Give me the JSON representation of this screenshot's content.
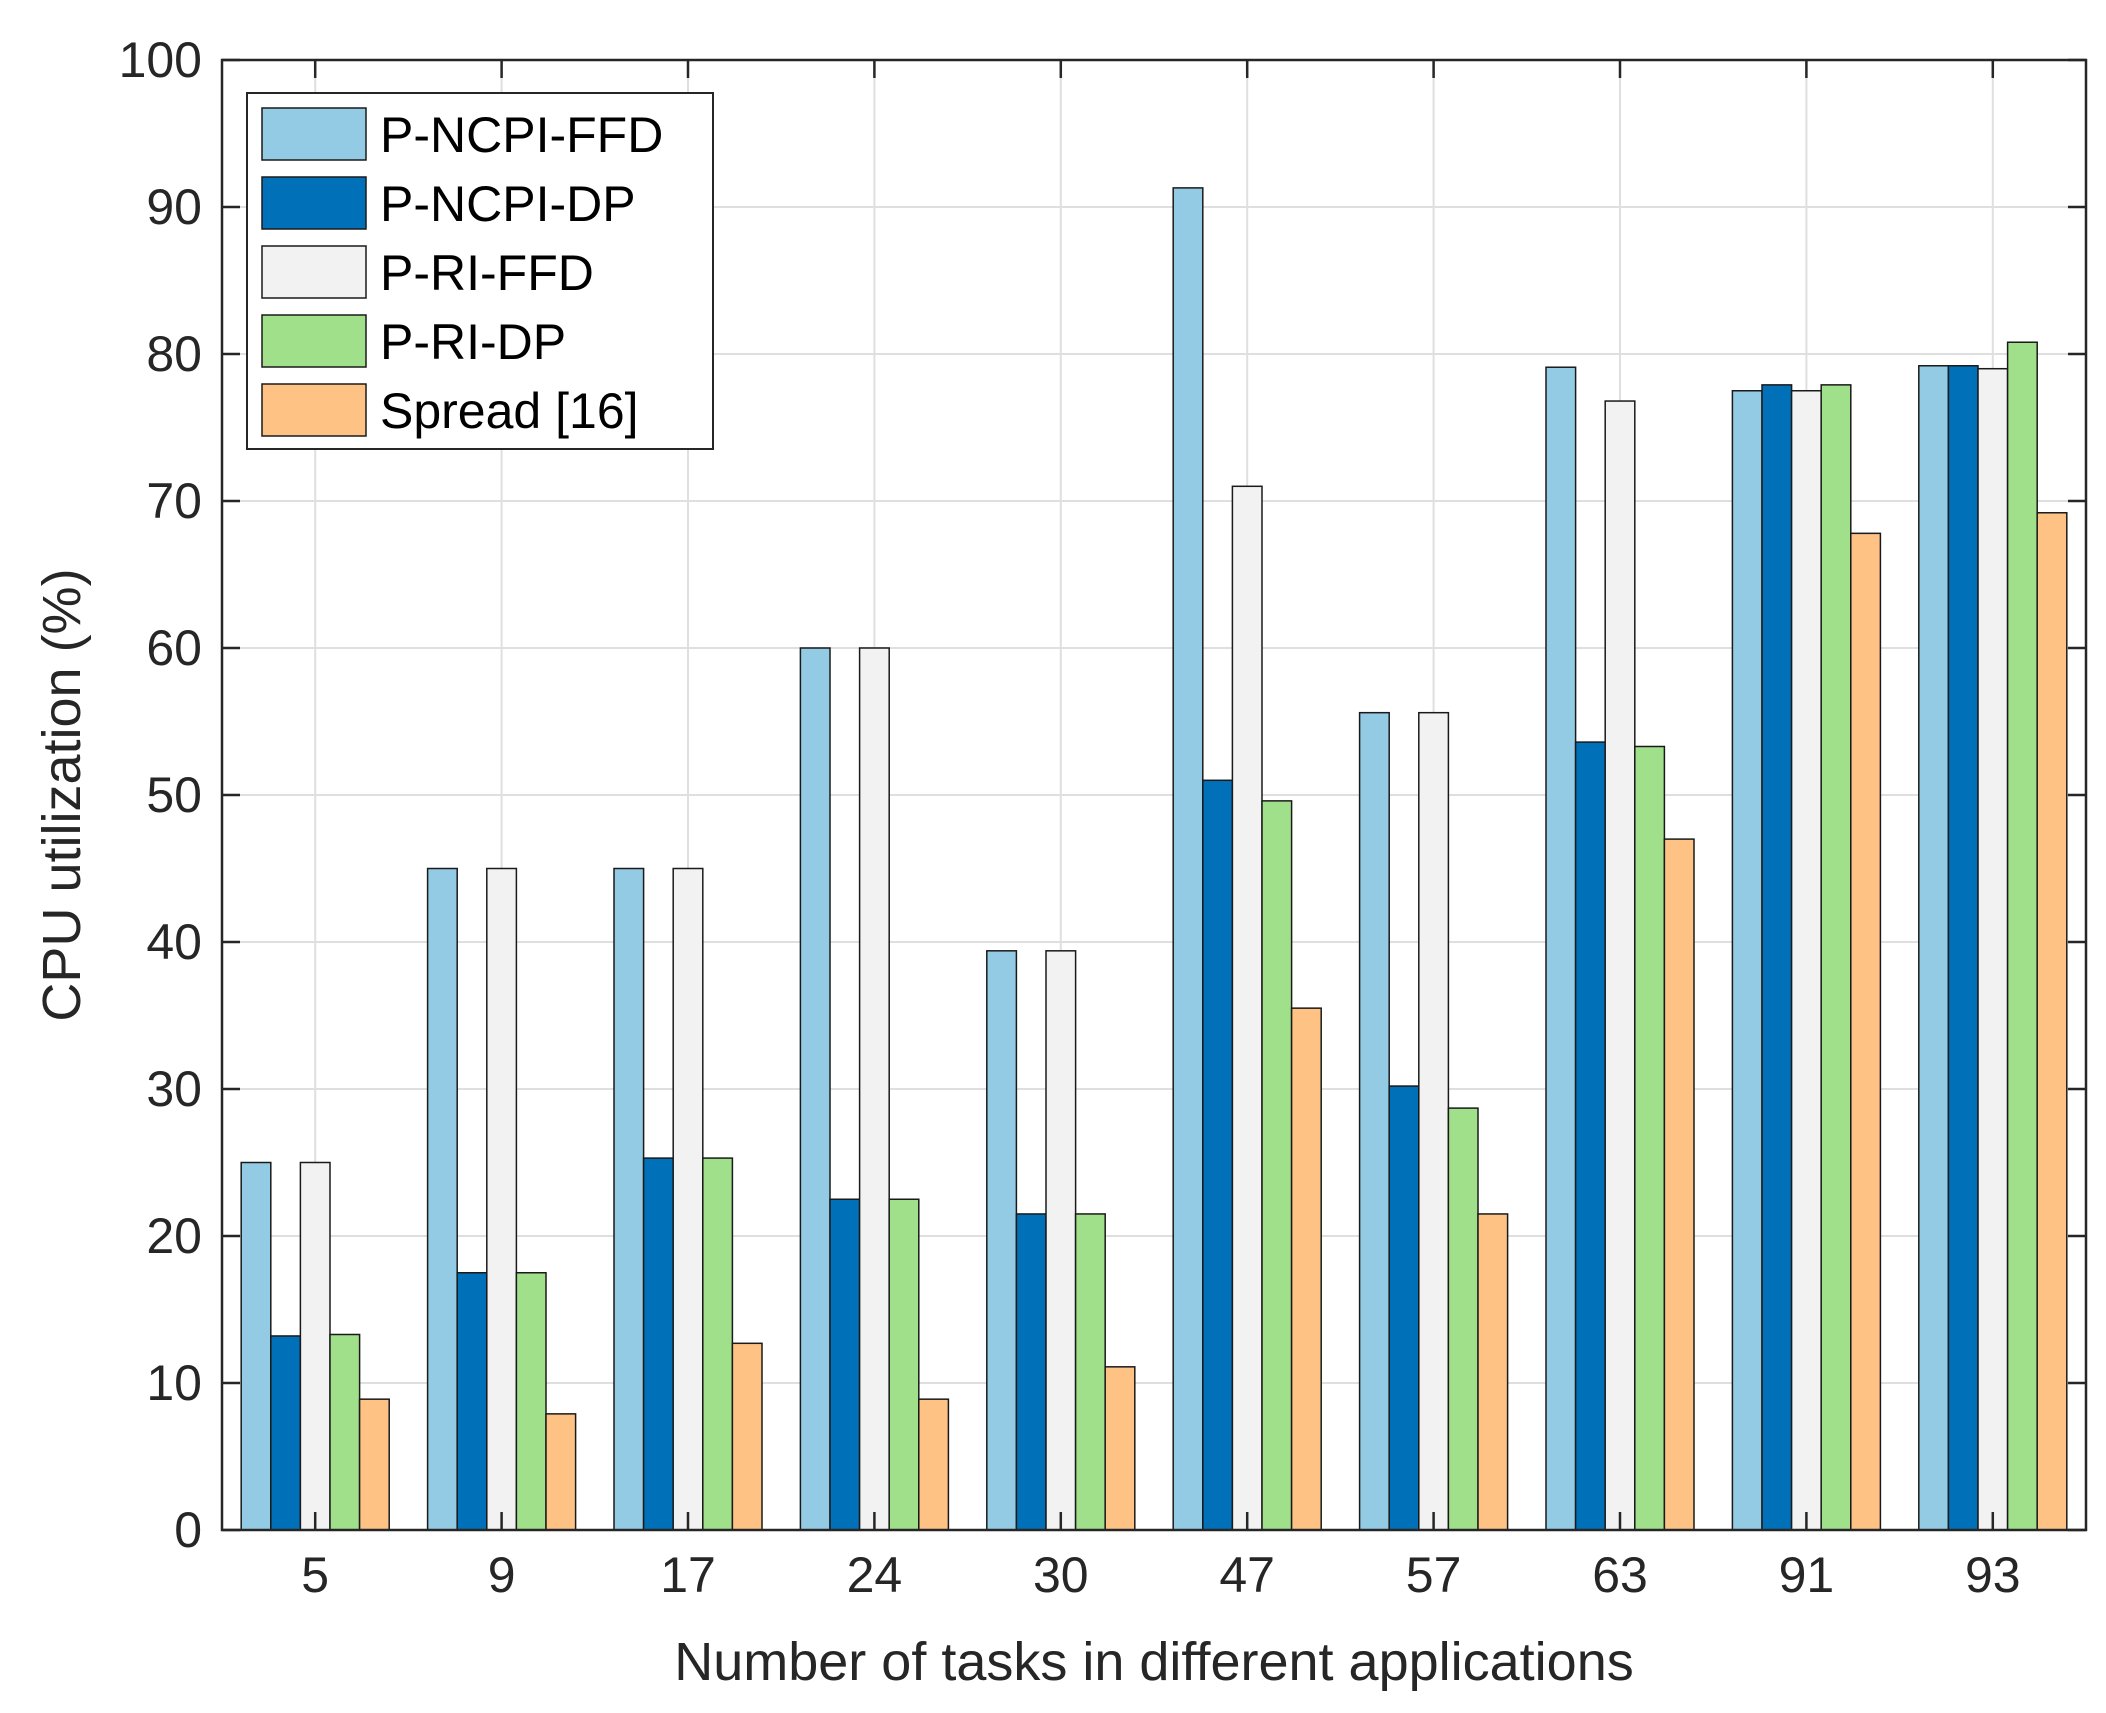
{
  "chart_data": {
    "type": "bar",
    "title": "",
    "xlabel": "Number of tasks in different applications",
    "ylabel": "CPU utilization (%)",
    "ylim": [
      0,
      100
    ],
    "yticks": [
      "0",
      "10",
      "20",
      "30",
      "40",
      "50",
      "60",
      "70",
      "80",
      "90",
      "100"
    ],
    "grid": true,
    "legend_position": "top-left",
    "categories": [
      "5",
      "9",
      "17",
      "24",
      "30",
      "47",
      "57",
      "63",
      "91",
      "93"
    ],
    "series": [
      {
        "name": "P-NCPI-FFD",
        "color": "#93cbe5",
        "values": [
          25.0,
          45.0,
          45.0,
          60.0,
          39.4,
          91.3,
          55.6,
          79.1,
          77.5,
          79.2
        ]
      },
      {
        "name": "P-NCPI-DP",
        "color": "#0070b8",
        "values": [
          13.2,
          17.5,
          25.3,
          22.5,
          21.5,
          51.0,
          30.2,
          53.6,
          77.9,
          79.2
        ]
      },
      {
        "name": "P-RI-FFD",
        "color": "#f2f2f2",
        "values": [
          25.0,
          45.0,
          45.0,
          60.0,
          39.4,
          71.0,
          55.6,
          76.8,
          77.5,
          79.0
        ]
      },
      {
        "name": "P-RI-DP",
        "color": "#a1e08b",
        "values": [
          13.3,
          17.5,
          25.3,
          22.5,
          21.5,
          49.6,
          28.7,
          53.3,
          77.9,
          80.8
        ]
      },
      {
        "name": "Spread [16]",
        "color": "#fec285",
        "values": [
          8.9,
          7.9,
          12.7,
          8.9,
          11.1,
          35.5,
          21.5,
          47.0,
          67.8,
          69.2
        ]
      }
    ]
  }
}
